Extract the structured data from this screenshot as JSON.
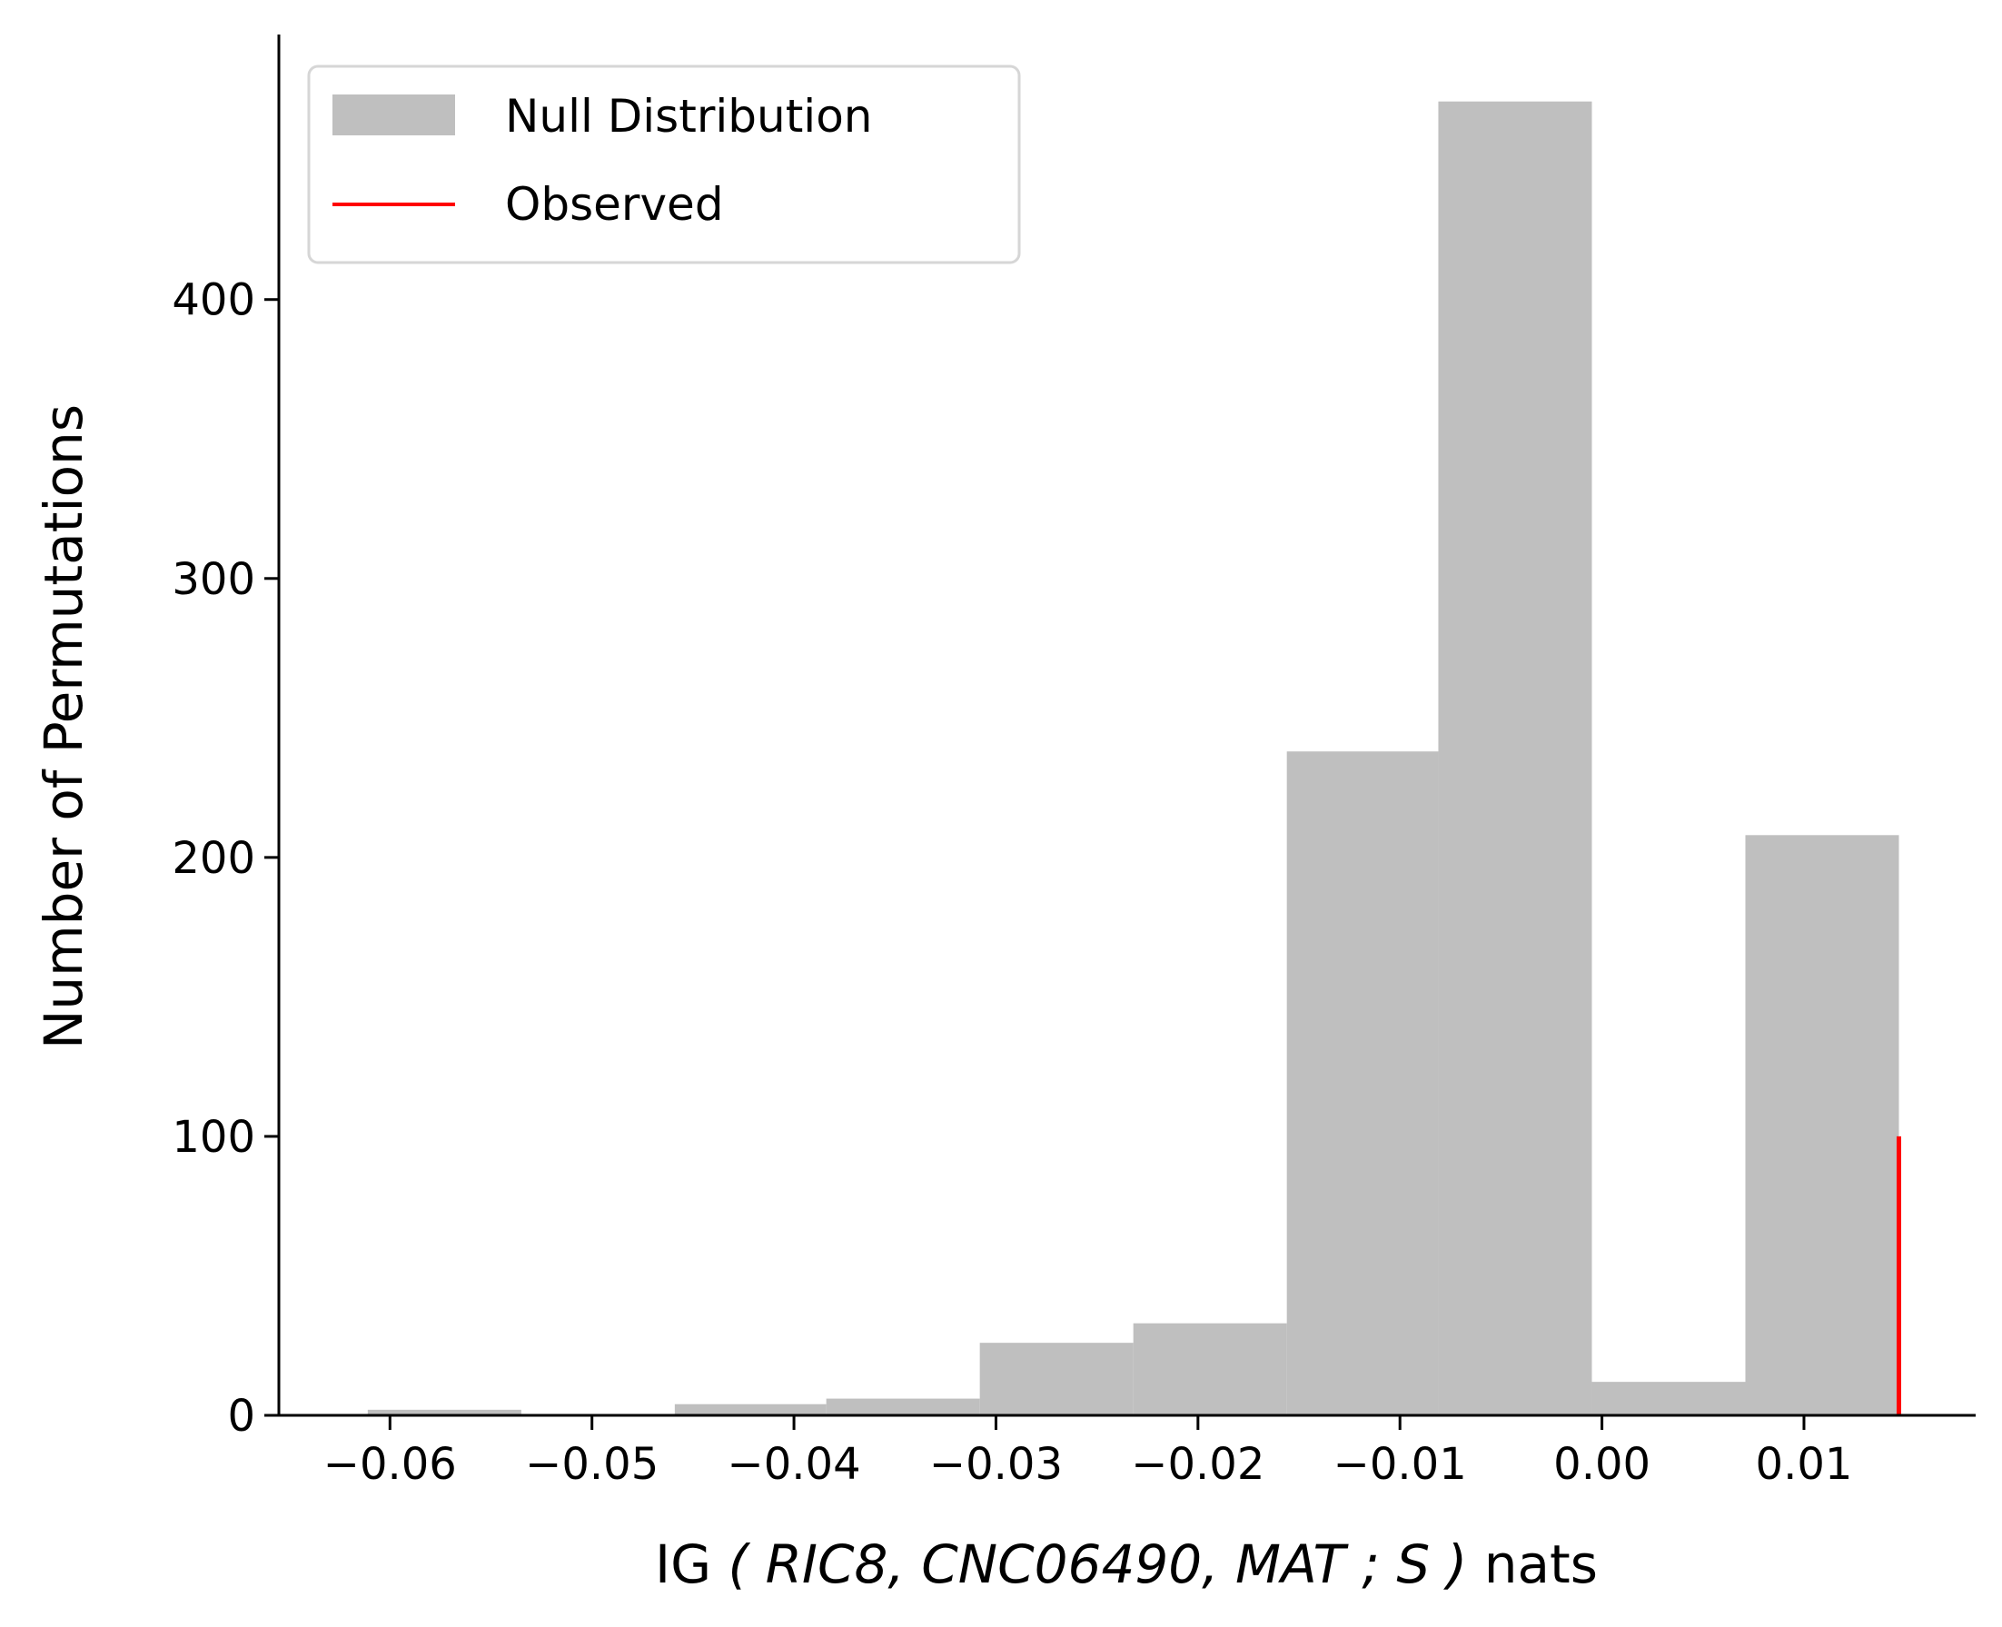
{
  "chart_data": {
    "type": "bar",
    "bins": [
      {
        "x0": -0.0611,
        "x1": -0.0535,
        "count": 2
      },
      {
        "x0": -0.0535,
        "x1": -0.0459,
        "count": 0
      },
      {
        "x0": -0.0459,
        "x1": -0.0384,
        "count": 4
      },
      {
        "x0": -0.0384,
        "x1": -0.0308,
        "count": 6
      },
      {
        "x0": -0.0308,
        "x1": -0.0232,
        "count": 26
      },
      {
        "x0": -0.0232,
        "x1": -0.0156,
        "count": 33
      },
      {
        "x0": -0.0156,
        "x1": -0.0081,
        "count": 238
      },
      {
        "x0": -0.0081,
        "x1": -0.0005,
        "count": 471
      },
      {
        "x0": -0.0005,
        "x1": 0.0071,
        "count": 12
      },
      {
        "x0": 0.0071,
        "x1": 0.0147,
        "count": 208
      }
    ],
    "observed": {
      "x": 0.0147,
      "height": 100
    },
    "xlim": [
      -0.0655,
      0.0185
    ],
    "ylim": [
      0,
      495
    ],
    "xticks": [
      -0.06,
      -0.05,
      -0.04,
      -0.03,
      -0.02,
      -0.01,
      0.0,
      0.01
    ],
    "xtick_labels": [
      "−0.06",
      "−0.05",
      "−0.04",
      "−0.03",
      "−0.02",
      "−0.01",
      "0.00",
      "0.01"
    ],
    "yticks": [
      0,
      100,
      200,
      300,
      400
    ],
    "ytick_labels": [
      "0",
      "100",
      "200",
      "300",
      "400"
    ],
    "xlabel": {
      "prefix": "IG ",
      "italic": "( RIC8, CNC06490, MAT ; S )",
      "suffix": " nats"
    },
    "ylabel": "Number of Permutations",
    "legend": {
      "placement": "top-left",
      "entries": [
        {
          "label": "Null Distribution",
          "kind": "patch",
          "color": "#bfbfbf"
        },
        {
          "label": "Observed",
          "kind": "line",
          "color": "#ff0000"
        }
      ]
    },
    "colors": {
      "bar": "#bfbfbf",
      "observed": "#ff0000"
    },
    "grid": false
  }
}
